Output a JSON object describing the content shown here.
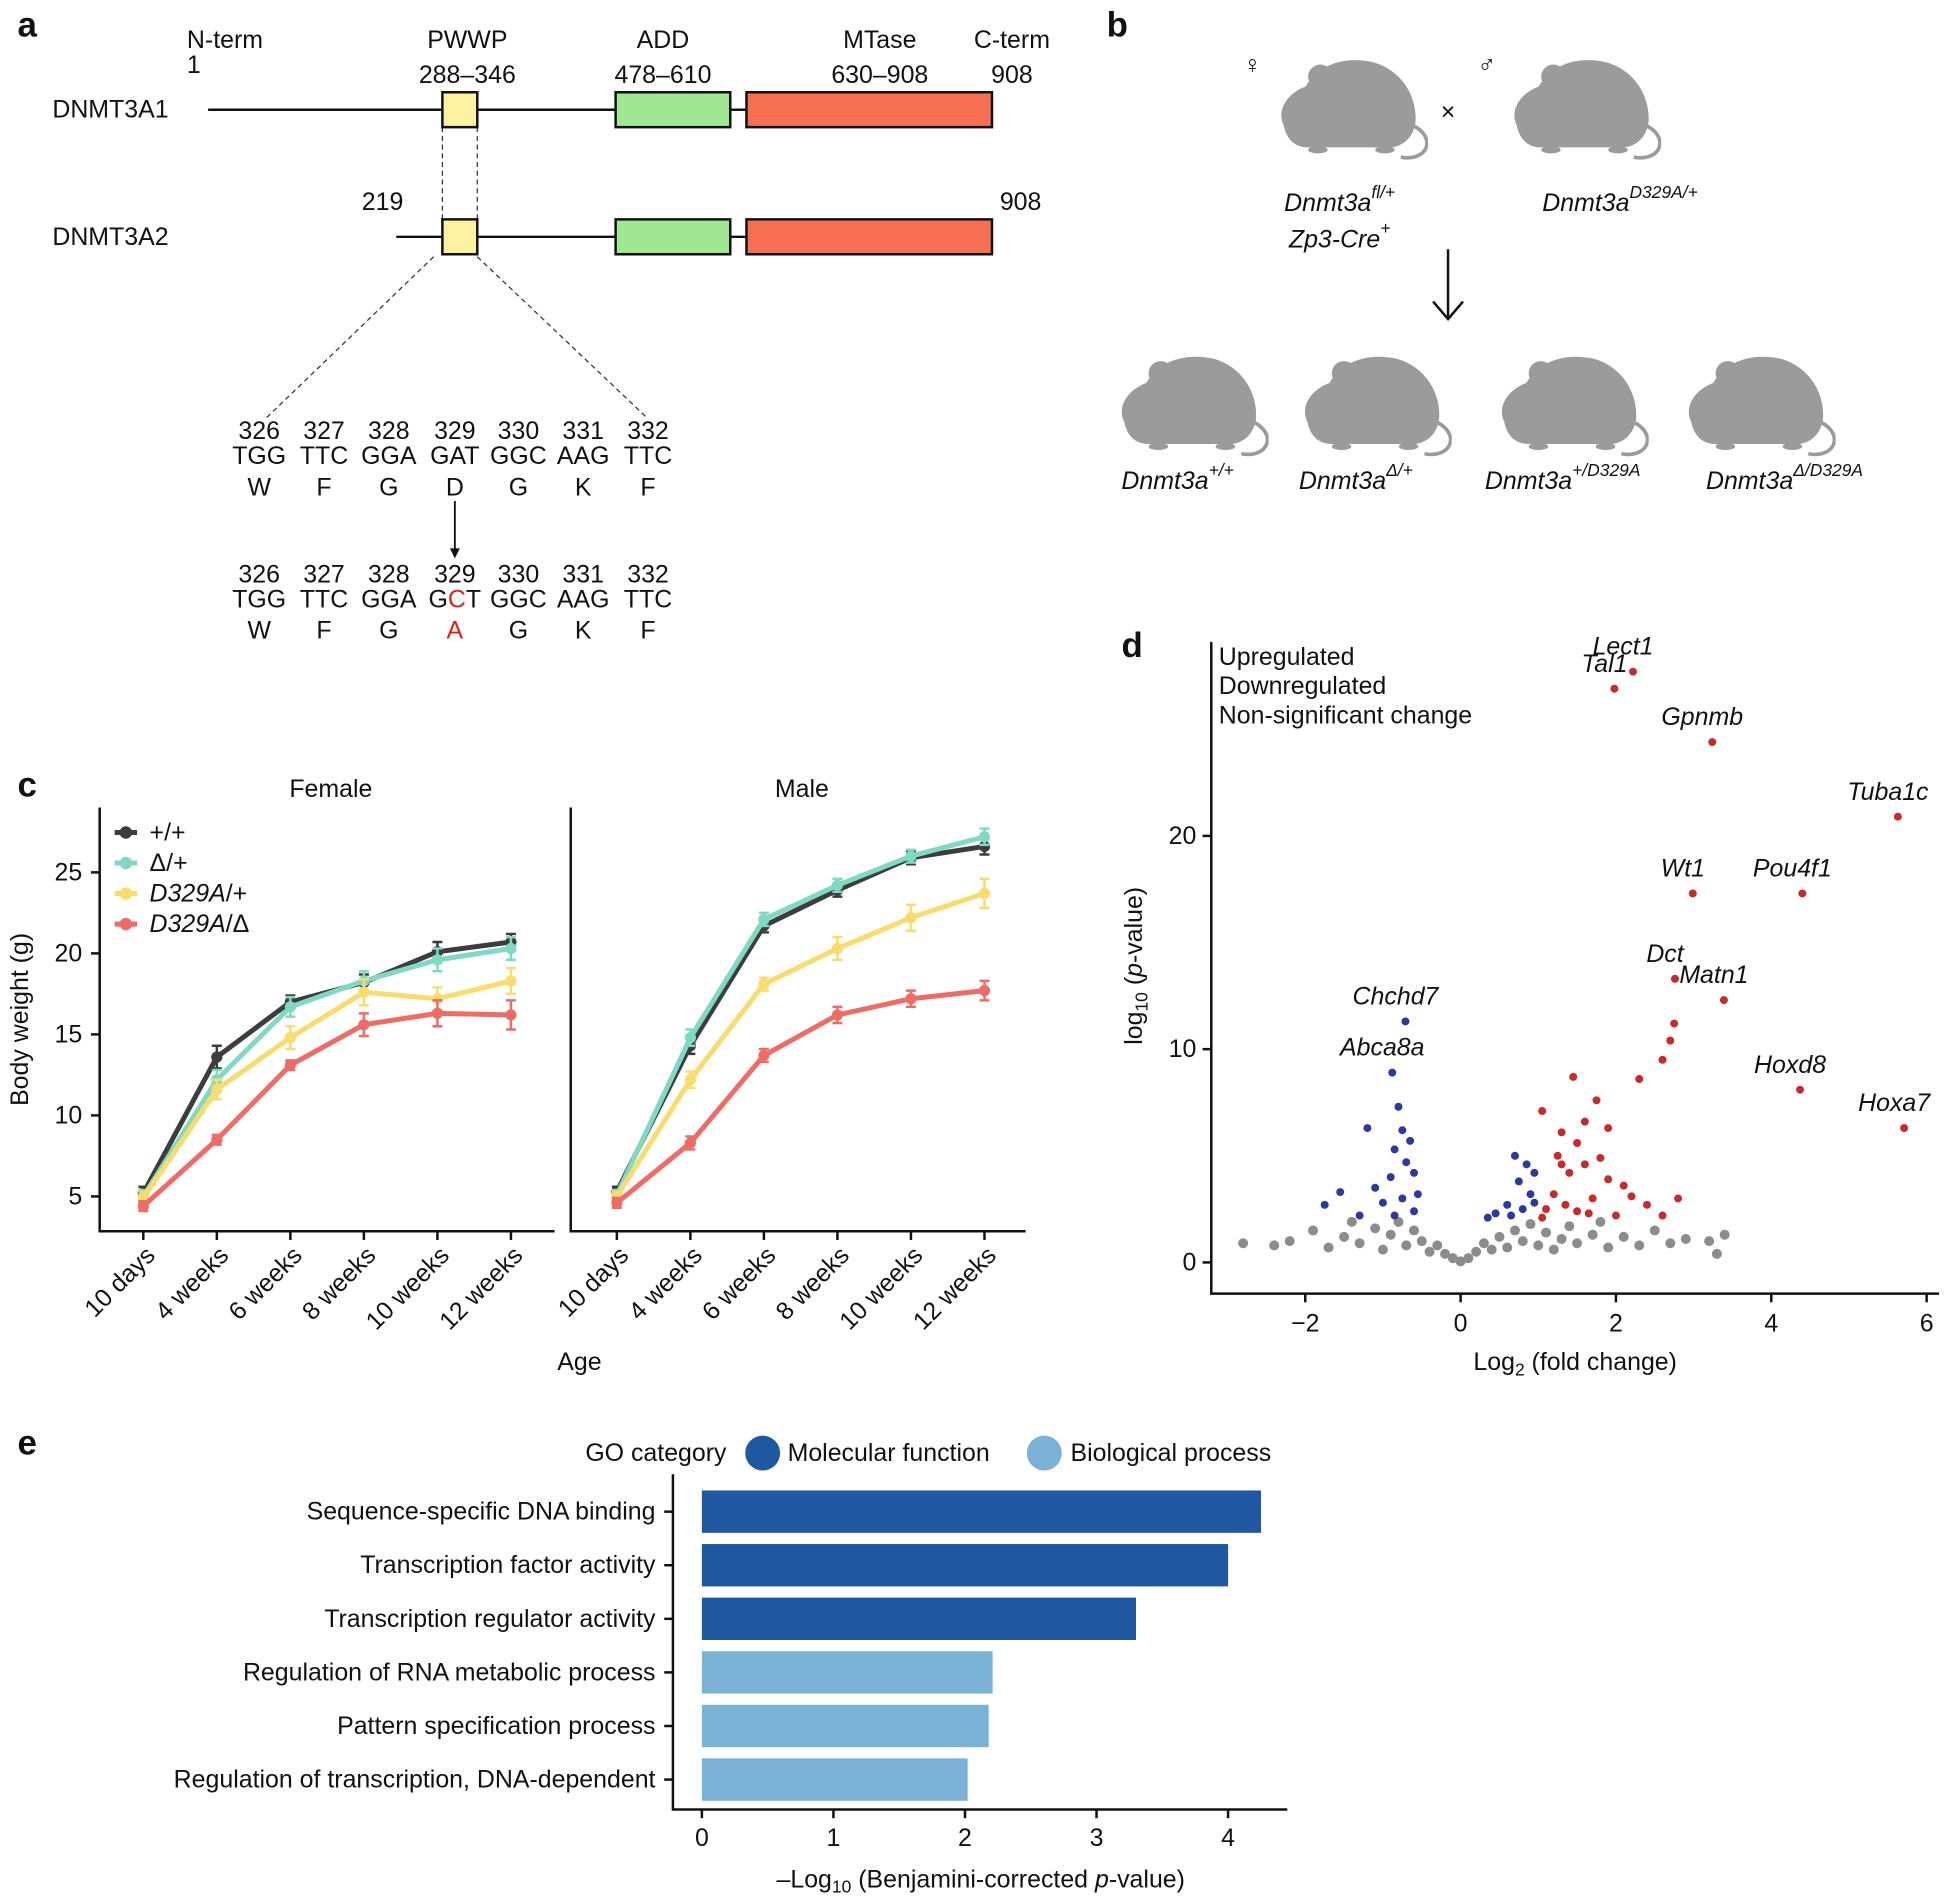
{
  "panel_a": {
    "letter": "a",
    "n_term": "N-term",
    "n_term_pos": "1",
    "c_term": "C-term",
    "c_term_pos": "908",
    "domains": [
      {
        "name": "PWWP",
        "range": "288–346",
        "color": "#fdf1a2"
      },
      {
        "name": "ADD",
        "range": "478–610",
        "color": "#a1e793"
      },
      {
        "name": "MTase",
        "range": "630–908",
        "color": "#f76f52"
      }
    ],
    "isoforms": [
      {
        "name": "DNMT3A1"
      },
      {
        "name": "DNMT3A2",
        "start": "219",
        "end": "908"
      }
    ],
    "wildtype": {
      "numbers": [
        326,
        327,
        328,
        329,
        330,
        331,
        332
      ],
      "codons": [
        "TGG",
        "TTC",
        "GGA",
        "GAT",
        "GGC",
        "AAG",
        "TTC"
      ],
      "aa": [
        "W",
        "F",
        "G",
        "D",
        "G",
        "K",
        "F"
      ]
    },
    "mutant": {
      "numbers": [
        326,
        327,
        328,
        329,
        330,
        331,
        332
      ],
      "codons": [
        "TGG",
        "TTC",
        "GGA",
        [
          {
            "t": "G"
          },
          {
            "t": "C",
            "color": "#e0201b"
          },
          {
            "t": "T"
          }
        ],
        "GGC",
        "AAG",
        "TTC"
      ],
      "aa": [
        "W",
        "F",
        "G",
        [
          {
            "t": "A",
            "color": "#e0201b"
          }
        ],
        "G",
        "K",
        "F"
      ]
    }
  },
  "panel_b": {
    "letter": "b",
    "female_symbol": "♀",
    "male_symbol": "♂",
    "cross": "×",
    "female_parent": [
      [
        {
          "t": "Dnmt3a"
        },
        {
          "t": "fl/+",
          "s": "sup"
        }
      ],
      [
        {
          "t": "Zp3-Cre"
        },
        {
          "t": "+",
          "s": "sup"
        }
      ]
    ],
    "male_parent": [
      {
        "t": "Dnmt3a"
      },
      {
        "t": "D329A/+",
        "s": "sup"
      }
    ],
    "offspring": [
      [
        {
          "t": "Dnmt3a"
        },
        {
          "t": "+/+",
          "s": "sup"
        }
      ],
      [
        {
          "t": "Dnmt3a"
        },
        {
          "t": "Δ/+",
          "s": "sup"
        }
      ],
      [
        {
          "t": "Dnmt3a"
        },
        {
          "t": "+/D329A",
          "s": "sup"
        }
      ],
      [
        {
          "t": "Dnmt3a"
        },
        {
          "t": "Δ/D329A",
          "s": "sup"
        }
      ]
    ]
  },
  "chart_data": [
    {
      "type": "line",
      "letter": "c",
      "facets": [
        "Female",
        "Male"
      ],
      "xlabel": "Age",
      "ylabel": "Body weight (g)",
      "categories": [
        "10 days",
        "4 weeks",
        "6 weeks",
        "8 weeks",
        "10 weeks",
        "12 weeks"
      ],
      "ylim": [
        2.85,
        29
      ],
      "yticks": [
        5,
        10,
        15,
        20,
        25
      ],
      "legend": "upper left",
      "series": [
        {
          "name": [
            {
              "t": "+/+"
            }
          ],
          "color": "#3d3d3d",
          "values": [
            [
              5.2,
              13.6,
              17.0,
              18.2,
              20.1,
              20.7
            ],
            [
              5.3,
              14.3,
              21.7,
              23.9,
              25.9,
              26.6
            ]
          ],
          "errors": [
            [
              0.4,
              0.7,
              0.4,
              0.5,
              0.6,
              0.5
            ],
            [
              0.3,
              0.5,
              0.4,
              0.4,
              0.4,
              0.5
            ]
          ]
        },
        {
          "name": [
            {
              "t": "Δ/+"
            }
          ],
          "color": "#7fd9c4",
          "values": [
            [
              5.0,
              12.2,
              16.7,
              18.3,
              19.6,
              20.3
            ],
            [
              5.1,
              14.8,
              22.1,
              24.2,
              26.0,
              27.2
            ]
          ],
          "errors": [
            [
              0.4,
              0.6,
              0.6,
              0.6,
              0.7,
              0.7
            ],
            [
              0.3,
              0.5,
              0.4,
              0.4,
              0.4,
              0.5
            ]
          ]
        },
        {
          "name": [
            {
              "t": "D329A",
              "s": "i"
            },
            {
              "t": "/+"
            }
          ],
          "color": "#f9dc6c",
          "values": [
            [
              4.9,
              11.6,
              14.8,
              17.6,
              17.2,
              18.3
            ],
            [
              5.0,
              12.2,
              18.1,
              20.3,
              22.2,
              23.7
            ]
          ],
          "errors": [
            [
              0.4,
              0.6,
              0.7,
              0.8,
              0.7,
              0.8
            ],
            [
              0.3,
              0.5,
              0.4,
              0.7,
              0.8,
              0.9
            ]
          ]
        },
        {
          "name": [
            {
              "t": "D329A",
              "s": "i"
            },
            {
              "t": "/Δ"
            }
          ],
          "color": "#f06b66",
          "values": [
            [
              4.4,
              8.5,
              13.1,
              15.6,
              16.3,
              16.2
            ],
            [
              4.6,
              8.3,
              13.7,
              16.2,
              17.2,
              17.7
            ]
          ],
          "errors": [
            [
              0.3,
              0.3,
              0.3,
              0.7,
              0.8,
              0.9
            ],
            [
              0.3,
              0.4,
              0.4,
              0.5,
              0.5,
              0.6
            ]
          ]
        }
      ]
    },
    {
      "type": "scatter",
      "letter": "d",
      "xlabel": [
        {
          "t": "Log"
        },
        {
          "t": "2",
          "s": "sub"
        },
        {
          "t": " (fold change)"
        }
      ],
      "ylabel": [
        {
          "t": "log"
        },
        {
          "t": "10",
          "s": "sub"
        },
        {
          "t": " ("
        },
        {
          "t": "p",
          "s": "i"
        },
        {
          "t": "-value)"
        }
      ],
      "xlim": [
        -3.21,
        6.16
      ],
      "ylim": [
        -1.46,
        29.1
      ],
      "xticks": [
        {
          "value": -2,
          "label": "−2"
        },
        0,
        2,
        4,
        6
      ],
      "yticks": [
        0,
        10,
        20
      ],
      "legend": "upper left",
      "series": [
        {
          "name": "Upregulated",
          "color": "#c62a2a",
          "x": [
            1.98,
            2.22,
            3.24,
            5.63,
            2.99,
            4.4,
            2.76,
            3.39,
            4.37,
            5.71,
            2.75,
            2.7,
            2.6,
            2.3,
            1.45,
            1.75,
            1.05,
            1.6,
            1.9,
            1.3,
            1.5,
            1.25,
            1.6,
            1.4,
            1.9,
            2.1,
            1.2,
            1.7,
            2.4,
            2.8,
            1.1,
            1.5,
            2.0,
            2.6,
            1.3,
            1.8,
            2.2,
            1.05,
            1.35,
            1.65
          ],
          "values": [
            26.9,
            27.7,
            24.4,
            20.9,
            17.3,
            17.3,
            13.3,
            12.3,
            8.1,
            6.3,
            11.2,
            10.4,
            9.5,
            8.6,
            8.7,
            7.6,
            7.1,
            6.6,
            6.3,
            6.1,
            5.6,
            5.0,
            4.6,
            4.2,
            3.9,
            3.6,
            3.2,
            3.0,
            2.7,
            3.0,
            2.5,
            2.4,
            2.2,
            2.2,
            4.6,
            4.9,
            3.1,
            2.1,
            2.7,
            2.3
          ],
          "labels": [
            "Tal1",
            "Lect1",
            "Gpnmb",
            "Tuba1c",
            "Wt1",
            "Pou4f1",
            "Dct",
            "Matn1",
            "Hoxd8",
            "Hoxa7",
            null,
            null,
            null,
            null,
            null,
            null,
            null,
            null,
            null,
            null,
            null,
            null,
            null,
            null,
            null,
            null,
            null,
            null,
            null,
            null,
            null,
            null,
            null,
            null,
            null,
            null,
            null,
            null,
            null,
            null
          ]
        },
        {
          "name": "Downregulated",
          "color": "#2b3a9c",
          "x": [
            -0.71,
            -0.88,
            -0.8,
            -1.2,
            -0.75,
            -0.65,
            -0.85,
            -0.7,
            -0.6,
            -0.9,
            -1.1,
            -0.55,
            -0.75,
            -1.0,
            -1.3,
            -1.75,
            -1.55,
            -0.6,
            -0.85,
            0.7,
            0.85,
            0.95,
            0.75,
            0.9,
            0.6,
            0.45,
            0.8,
            0.35,
            0.65,
            0.95
          ],
          "values": [
            11.3,
            8.9,
            7.3,
            6.3,
            6.2,
            5.7,
            5.3,
            4.7,
            4.2,
            4.0,
            3.5,
            3.2,
            3.0,
            2.8,
            2.2,
            2.7,
            3.3,
            2.4,
            2.2,
            5.0,
            4.6,
            4.2,
            3.8,
            3.2,
            2.7,
            2.3,
            2.5,
            2.1,
            2.2,
            2.8
          ],
          "labels": [
            "Chchd7",
            "Abca8a",
            null,
            null,
            null,
            null,
            null,
            null,
            null,
            null,
            null,
            null,
            null,
            null,
            null,
            null,
            null,
            null,
            null,
            null,
            null,
            null,
            null,
            null,
            null,
            null,
            null,
            null,
            null,
            null
          ]
        },
        {
          "name": "Non-significant change",
          "color": "#8c8c8c",
          "x": [
            -2.8,
            -2.4,
            -2.2,
            -1.9,
            -1.7,
            -1.5,
            -1.3,
            -1.1,
            -1.0,
            -0.9,
            -0.8,
            -0.7,
            -0.6,
            -0.5,
            -0.4,
            -0.3,
            -0.2,
            -0.1,
            0,
            0.1,
            0.2,
            0.3,
            0.4,
            0.5,
            0.6,
            0.7,
            0.8,
            0.9,
            1.0,
            1.1,
            1.2,
            1.3,
            1.4,
            1.5,
            1.7,
            1.9,
            2.1,
            2.3,
            2.5,
            2.7,
            2.9,
            3.2,
            3.3,
            3.4,
            1.8,
            -1.4
          ],
          "values": [
            0.9,
            0.8,
            1.0,
            1.5,
            0.7,
            1.2,
            0.9,
            1.6,
            0.6,
            1.3,
            1.9,
            0.8,
            1.5,
            1.0,
            0.5,
            0.8,
            0.4,
            0.2,
            0.05,
            0.2,
            0.5,
            0.9,
            0.6,
            1.2,
            0.7,
            1.5,
            1.0,
            1.8,
            0.8,
            1.4,
            0.6,
            1.1,
            1.7,
            0.9,
            1.3,
            0.7,
            1.2,
            0.8,
            1.5,
            0.9,
            1.1,
            1.0,
            0.4,
            1.3,
            1.9,
            1.9
          ]
        }
      ]
    },
    {
      "type": "barh",
      "letter": "e",
      "legend_title": "GO category",
      "xlabel": [
        {
          "t": "–Log"
        },
        {
          "t": "10",
          "s": "sub"
        },
        {
          "t": " (Benjamini-corrected "
        },
        {
          "t": "p",
          "s": "i"
        },
        {
          "t": "-value)"
        }
      ],
      "categories": [
        "Sequence-specific DNA binding",
        "Transcription factor activity",
        "Transcription regulator activity",
        "Regulation of RNA metabolic process",
        "Pattern specification process",
        "Regulation of transcription, DNA-dependent"
      ],
      "xlim": [
        -0.22,
        4.45
      ],
      "xticks": [
        0,
        1,
        2,
        3,
        4
      ],
      "series": [
        {
          "name": "Molecular function",
          "color": "#1f58a1",
          "values": [
            4.25,
            4.0,
            3.3,
            null,
            null,
            null
          ]
        },
        {
          "name": "Biological process",
          "color": "#79b2d6",
          "values": [
            null,
            null,
            null,
            2.21,
            2.18,
            2.02
          ]
        }
      ]
    }
  ]
}
